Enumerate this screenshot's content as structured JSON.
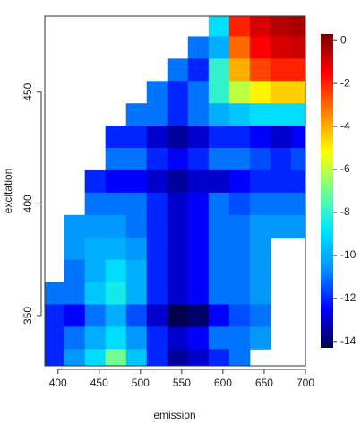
{
  "chart_data": {
    "type": "heatmap",
    "xlabel": "emission",
    "ylabel": "excitation",
    "x": [
      395,
      420,
      445,
      470,
      495,
      520,
      545,
      570,
      595,
      620,
      645,
      670,
      695
    ],
    "y": [
      480,
      470,
      460,
      450,
      440,
      430,
      420,
      410,
      400,
      390,
      380,
      370,
      360,
      350,
      340,
      330
    ],
    "z": [
      [
        null,
        null,
        null,
        null,
        null,
        null,
        null,
        null,
        -9,
        -2,
        -1,
        -0.5,
        -0.3
      ],
      [
        null,
        null,
        null,
        null,
        null,
        null,
        null,
        -11,
        -10,
        -3,
        -1.5,
        -1,
        -0.8
      ],
      [
        null,
        null,
        null,
        null,
        null,
        null,
        -11,
        -12,
        -8,
        -4,
        -2.5,
        -2,
        -2
      ],
      [
        null,
        null,
        null,
        null,
        null,
        -11,
        -12,
        -11,
        -8,
        -6,
        -5,
        -4.5,
        -4.5
      ],
      [
        null,
        null,
        null,
        null,
        -11,
        -11,
        -12,
        -11,
        -10,
        -9.5,
        -9,
        -9,
        -9
      ],
      [
        null,
        null,
        null,
        -12,
        -12,
        -13,
        -13.5,
        -13,
        -12,
        -12,
        -12.5,
        -13,
        -12.5
      ],
      [
        null,
        null,
        null,
        -11,
        -11,
        -12,
        -12.5,
        -12,
        -11,
        -11,
        -11.5,
        -12,
        -11.5
      ],
      [
        null,
        null,
        -12,
        -12.5,
        -12.5,
        -13,
        -13.5,
        -13,
        -13,
        -12.5,
        -12,
        -12,
        -12
      ],
      [
        null,
        null,
        -11,
        -11,
        -11,
        -12,
        -13,
        -12.5,
        -11,
        -11.5,
        -11,
        -11,
        -11
      ],
      [
        null,
        -10.5,
        -10.5,
        -10.5,
        -11,
        -12,
        -13,
        -12.5,
        -11,
        -11,
        -10.5,
        -10.5,
        -10.5
      ],
      [
        null,
        -10.5,
        -10,
        -10,
        -10.5,
        -12,
        -13,
        -12.5,
        -11,
        -11,
        -10.5,
        null,
        null
      ],
      [
        null,
        -11,
        -10,
        -9,
        -10,
        -12,
        -13,
        -12.5,
        -11,
        -11,
        -10.5,
        null,
        null
      ],
      [
        -11,
        -11,
        -9.5,
        -8.5,
        -10,
        -12,
        -13,
        -12.5,
        -11,
        -11,
        -10.5,
        null,
        null
      ],
      [
        -12,
        -12.5,
        -11,
        -10,
        -11.5,
        -13,
        -14.5,
        -14,
        -12.5,
        -11.5,
        -11,
        null,
        null
      ],
      [
        -12,
        -11,
        -10,
        -9,
        -10.5,
        -12,
        -13,
        -12.5,
        -11,
        -11,
        -10.5,
        null,
        null
      ],
      [
        -12,
        -10.5,
        -9,
        -7,
        -9.5,
        -12,
        -13.5,
        -13,
        -12,
        -11,
        null,
        null,
        null
      ]
    ],
    "xlim": [
      384,
      700
    ],
    "xticks": [
      400,
      450,
      500,
      550,
      600,
      650,
      700
    ],
    "ylim": [
      327.5,
      484
    ],
    "yticks": [
      350,
      400,
      450
    ],
    "colors": [
      "#00004f",
      "#0000ff",
      "#0090ff",
      "#00e5ff",
      "#70ff90",
      "#ffff00",
      "#ff8000",
      "#ff0000",
      "#7a0000"
    ],
    "clim": [
      -14.3,
      0.3
    ],
    "cticks": [
      0,
      -2,
      -4,
      -6,
      -8,
      -10,
      -12,
      -14
    ]
  }
}
